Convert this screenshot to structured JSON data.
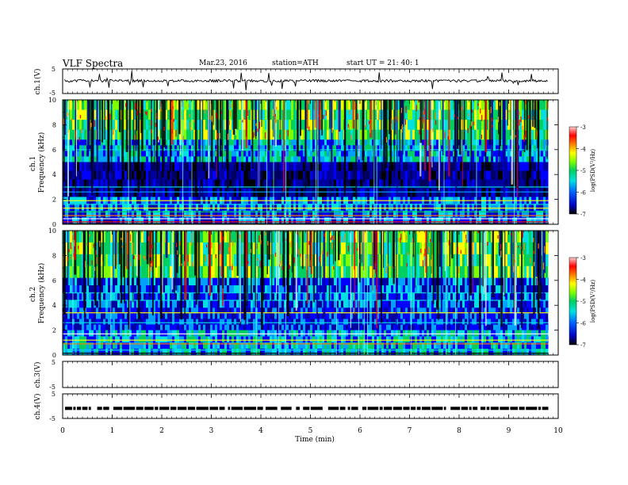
{
  "header": {
    "title": "VLF Spectra",
    "date": "Mar.23, 2016",
    "station": "station=ATH",
    "start": "start  UT  =   21: 40: 1"
  },
  "chart_data": [
    {
      "type": "line",
      "panel": "ch1-waveform",
      "ylabel": "ch.1(V)",
      "ylim": [
        -5,
        5
      ],
      "y_ticks": [
        "5",
        "-5"
      ],
      "xlim": [
        0,
        10
      ],
      "series": [
        {
          "baseline": 0,
          "description_of_trace": "noisy waveform near 0 V with spikes up to ~ +2 V and down to ~ -2 V"
        }
      ],
      "trace_color": "#000000"
    },
    {
      "type": "heatmap",
      "panel": "ch1-spectrogram",
      "ylabel": "ch.1\nFrequency (kHz)",
      "ylim": [
        0,
        10
      ],
      "y_ticks": [
        "0",
        "2",
        "4",
        "6",
        "8",
        "10"
      ],
      "xlim": [
        0,
        10
      ],
      "colorbar": {
        "label": "log(PSD(V²/Hz)",
        "range": [
          -7,
          -3
        ],
        "ticks": [
          "-7",
          "-6",
          "-5",
          "-4",
          "-3"
        ]
      }
    },
    {
      "type": "heatmap",
      "panel": "ch2-spectrogram",
      "ylabel": "ch.2\nFrequency (kHz)",
      "ylim": [
        0,
        10
      ],
      "y_ticks": [
        "0",
        "2",
        "4",
        "6",
        "8",
        "10"
      ],
      "xlim": [
        0,
        10
      ],
      "colorbar": {
        "label": "log(PSD(V²/Hz)",
        "range": [
          -7,
          -3
        ],
        "ticks": [
          "-7",
          "-6",
          "-5",
          "-4",
          "-3"
        ]
      }
    },
    {
      "type": "line",
      "panel": "ch3-waveform",
      "ylabel": "ch.3(V)",
      "ylim": [
        -5,
        5
      ],
      "y_ticks": [
        "5",
        "-5"
      ],
      "xlim": [
        0,
        10
      ]
    },
    {
      "type": "line",
      "panel": "ch4-waveform",
      "ylabel": "ch.4(V)",
      "ylim": [
        -5,
        5
      ],
      "y_ticks": [
        "5",
        "-5"
      ],
      "xlim": [
        0,
        10
      ],
      "series": [
        {
          "level": -0.9,
          "style": "dashed",
          "end_time_min": 9.8
        }
      ]
    }
  ],
  "xaxis": {
    "label": "Time  (min)",
    "ticks": [
      "0",
      "1",
      "2",
      "3",
      "4",
      "5",
      "6",
      "7",
      "8",
      "9",
      "10"
    ],
    "data_end_min": 9.8
  },
  "colormap": [
    "#000000",
    "#0000a0",
    "#0000ff",
    "#00a0ff",
    "#00e0e0",
    "#00d060",
    "#80ff00",
    "#ffff00",
    "#ff8000",
    "#ff0000",
    "#ffb0b0"
  ]
}
